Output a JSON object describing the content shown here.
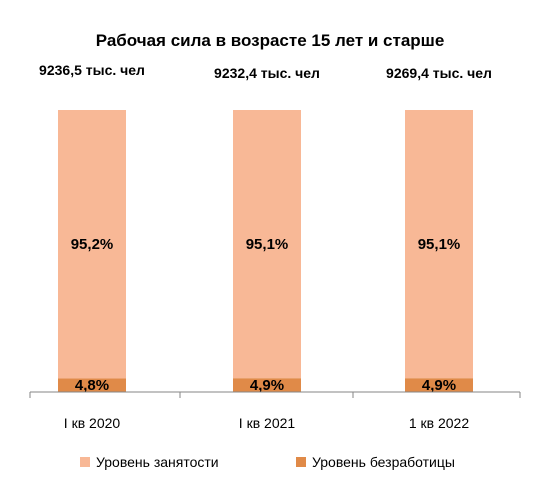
{
  "chart_data": {
    "type": "bar",
    "stacked": true,
    "title": "Рабочая сила в возрасте 15 лет и старше",
    "categories": [
      "I кв 2020",
      "I кв 2021",
      "1 кв 2022"
    ],
    "totals": [
      "9236,5 тыс. чел",
      "9232,4 тыс. чел",
      "9269,4 тыс. чел"
    ],
    "series": [
      {
        "name": "Уровень безработицы",
        "values": [
          4.8,
          4.9,
          4.9
        ],
        "labels": [
          "4,8%",
          "4,9%",
          "4,9%"
        ],
        "color": "#E08A48"
      },
      {
        "name": "Уровень занятости",
        "values": [
          95.2,
          95.1,
          95.1
        ],
        "labels": [
          "95,2%",
          "95,1%",
          "95,1%"
        ],
        "color": "#F8B896"
      }
    ],
    "ylim": [
      0,
      100
    ],
    "grid": false,
    "legend": "bottom"
  }
}
